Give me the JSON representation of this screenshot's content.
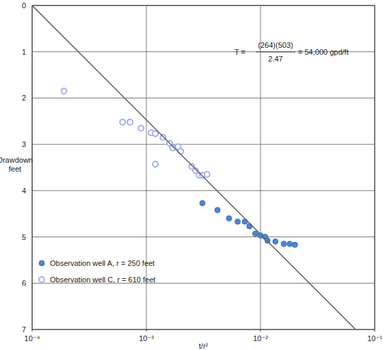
{
  "chart_data": {
    "type": "scatter",
    "xlabel": "t/r²",
    "ylabel": [
      "Drawdown",
      "feet"
    ],
    "log": "x",
    "grid": true,
    "legend": "lower left",
    "xlim": [
      0.0001,
      0.1
    ],
    "ylim": [
      7,
      0
    ],
    "xticks": [
      {
        "value": 0.0001,
        "label": "10⁻⁴"
      },
      {
        "value": 0.001,
        "label": "10⁻³"
      },
      {
        "value": 0.01,
        "label": "10⁻²"
      },
      {
        "value": 0.1,
        "label": "10⁻¹"
      }
    ],
    "yticks": [
      0,
      1,
      2,
      3,
      4,
      5,
      6,
      7
    ],
    "annotation": {
      "lhs": "T =",
      "numerator": "(264)(503)",
      "denominator": "2.47",
      "rhs": "= 54,000 gpd/ft"
    },
    "series": [
      {
        "name": "Observation well A, r = 250 feet",
        "type": "scatter",
        "marker": "filled",
        "color": "#4a86d8",
        "x": [
          0.0031,
          0.0042,
          0.0053,
          0.0063,
          0.0073,
          0.008,
          0.009,
          0.01,
          0.011,
          0.0115,
          0.0135,
          0.016,
          0.018,
          0.02
        ],
        "values": [
          4.27,
          4.42,
          4.6,
          4.67,
          4.67,
          4.77,
          4.93,
          4.97,
          5.0,
          5.08,
          5.1,
          5.15,
          5.15,
          5.17
        ]
      },
      {
        "name": "Observation well C, r = 610 feet",
        "type": "scatter",
        "marker": "open",
        "color": "#9fb0f0",
        "x": [
          0.00019,
          0.00062,
          0.00072,
          0.0009,
          0.0011,
          0.0012,
          0.0012,
          0.0014,
          0.0016,
          0.0017,
          0.0019,
          0.002,
          0.0025,
          0.0027,
          0.0029,
          0.0031,
          0.0034
        ],
        "values": [
          1.85,
          2.52,
          2.52,
          2.65,
          2.75,
          2.77,
          3.43,
          2.85,
          2.98,
          3.08,
          3.05,
          3.15,
          3.48,
          3.57,
          3.67,
          3.67,
          3.65
        ]
      },
      {
        "type": "line",
        "line_style": "solid",
        "color": "#666666",
        "x": [
          0.0001,
          0.068
        ],
        "values": [
          0,
          7
        ]
      }
    ]
  }
}
